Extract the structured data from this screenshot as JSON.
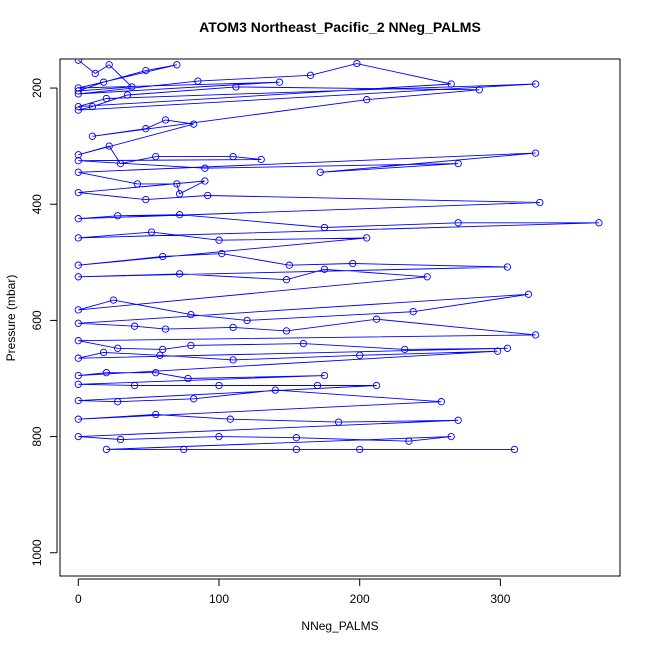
{
  "chart_data": {
    "type": "line",
    "title": "ATOM3 Northeast_Pacific_2 NNeg_PALMS",
    "xlabel": "NNeg_PALMS",
    "ylabel": "Pressure (mbar)",
    "xlim": [
      -13,
      385
    ],
    "ylim": [
      1040,
      150
    ],
    "y_reversed": true,
    "x_ticks": [
      0,
      100,
      200,
      300
    ],
    "y_ticks": [
      200,
      400,
      600,
      800,
      1000
    ],
    "grid": false,
    "legend": "none",
    "colors": {
      "series": "#0000ff",
      "axis": "#000000",
      "background": "#ffffff"
    },
    "series": [
      {
        "values": [
          [
            0,
            152
          ],
          [
            12,
            175
          ],
          [
            22,
            160
          ],
          [
            38,
            198
          ],
          [
            0,
            205
          ],
          [
            18,
            190
          ],
          [
            48,
            170
          ],
          [
            70,
            160
          ],
          [
            0,
            200
          ],
          [
            143,
            190
          ],
          [
            0,
            210
          ],
          [
            85,
            188
          ],
          [
            165,
            178
          ],
          [
            198,
            158
          ],
          [
            265,
            193
          ],
          [
            0,
            232
          ],
          [
            20,
            218
          ],
          [
            325,
            193
          ],
          [
            0,
            238
          ],
          [
            10,
            232
          ],
          [
            35,
            212
          ],
          [
            112,
            198
          ],
          [
            285,
            203
          ],
          [
            205,
            220
          ],
          [
            10,
            283
          ],
          [
            48,
            270
          ],
          [
            62,
            255
          ],
          [
            82,
            262
          ],
          [
            0,
            315
          ],
          [
            22,
            300
          ],
          [
            30,
            330
          ],
          [
            55,
            318
          ],
          [
            110,
            318
          ],
          [
            130,
            323
          ],
          [
            0,
            325
          ],
          [
            90,
            338
          ],
          [
            270,
            330
          ],
          [
            172,
            345
          ],
          [
            325,
            312
          ],
          [
            0,
            345
          ],
          [
            42,
            365
          ],
          [
            70,
            365
          ],
          [
            72,
            382
          ],
          [
            90,
            360
          ],
          [
            0,
            380
          ],
          [
            48,
            392
          ],
          [
            92,
            385
          ],
          [
            328,
            397
          ],
          [
            0,
            425
          ],
          [
            28,
            420
          ],
          [
            72,
            418
          ],
          [
            175,
            440
          ],
          [
            270,
            432
          ],
          [
            370,
            432
          ],
          [
            0,
            458
          ],
          [
            52,
            448
          ],
          [
            100,
            462
          ],
          [
            205,
            458
          ],
          [
            0,
            505
          ],
          [
            60,
            490
          ],
          [
            102,
            485
          ],
          [
            150,
            505
          ],
          [
            195,
            502
          ],
          [
            305,
            508
          ],
          [
            0,
            525
          ],
          [
            72,
            520
          ],
          [
            148,
            530
          ],
          [
            175,
            512
          ],
          [
            248,
            525
          ],
          [
            0,
            582
          ],
          [
            25,
            565
          ],
          [
            80,
            590
          ],
          [
            120,
            600
          ],
          [
            238,
            585
          ],
          [
            320,
            555
          ],
          [
            0,
            605
          ],
          [
            40,
            610
          ],
          [
            62,
            615
          ],
          [
            110,
            612
          ],
          [
            148,
            618
          ],
          [
            212,
            598
          ],
          [
            325,
            625
          ],
          [
            0,
            635
          ],
          [
            28,
            648
          ],
          [
            60,
            650
          ],
          [
            80,
            643
          ],
          [
            160,
            640
          ],
          [
            232,
            650
          ],
          [
            305,
            648
          ],
          [
            0,
            665
          ],
          [
            18,
            655
          ],
          [
            58,
            660
          ],
          [
            110,
            668
          ],
          [
            200,
            660
          ],
          [
            298,
            653
          ],
          [
            0,
            695
          ],
          [
            20,
            690
          ],
          [
            55,
            690
          ],
          [
            78,
            700
          ],
          [
            175,
            695
          ],
          [
            0,
            710
          ],
          [
            40,
            712
          ],
          [
            100,
            712
          ],
          [
            170,
            712
          ],
          [
            212,
            712
          ],
          [
            0,
            738
          ],
          [
            28,
            740
          ],
          [
            82,
            735
          ],
          [
            140,
            720
          ],
          [
            258,
            740
          ],
          [
            0,
            770
          ],
          [
            55,
            762
          ],
          [
            108,
            770
          ],
          [
            185,
            775
          ],
          [
            270,
            772
          ],
          [
            0,
            800
          ],
          [
            30,
            805
          ],
          [
            100,
            800
          ],
          [
            155,
            802
          ],
          [
            235,
            808
          ],
          [
            265,
            800
          ],
          [
            20,
            822
          ],
          [
            75,
            822
          ],
          [
            155,
            822
          ],
          [
            200,
            822
          ],
          [
            310,
            822
          ]
        ]
      }
    ]
  }
}
